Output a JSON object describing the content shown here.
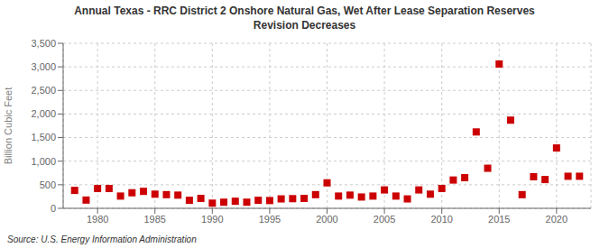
{
  "chart_data": {
    "type": "scatter",
    "title": "Annual Texas - RRC District 2 Onshore Natural Gas, Wet After Lease Separation Reserves\nRevision Decreases",
    "ylabel": "Billion Cubic Feet",
    "annotations": [
      "Source: U.S. Energy Information Administration"
    ],
    "x": [
      1978,
      1979,
      1980,
      1981,
      1982,
      1983,
      1984,
      1985,
      1986,
      1987,
      1988,
      1989,
      1990,
      1991,
      1992,
      1993,
      1994,
      1995,
      1996,
      1997,
      1998,
      1999,
      2000,
      2001,
      2002,
      2003,
      2004,
      2005,
      2006,
      2007,
      2008,
      2009,
      2010,
      2011,
      2012,
      2013,
      2014,
      2015,
      2016,
      2017,
      2018,
      2019,
      2020,
      2021,
      2022
    ],
    "values": [
      380,
      175,
      420,
      420,
      260,
      330,
      360,
      300,
      290,
      280,
      170,
      210,
      110,
      130,
      150,
      130,
      170,
      165,
      200,
      205,
      210,
      290,
      540,
      260,
      280,
      240,
      260,
      390,
      260,
      200,
      390,
      300,
      420,
      600,
      650,
      1620,
      850,
      3060,
      1870,
      290,
      670,
      610,
      1280,
      680,
      680
    ],
    "color": "#cc0000",
    "marker": "square",
    "xlim": [
      1977,
      2023
    ],
    "ylim": [
      0,
      3500
    ],
    "xticks": [
      1980,
      1985,
      1990,
      1995,
      2000,
      2005,
      2010,
      2015,
      2020
    ],
    "yticks": [
      0,
      500,
      {
        "value": 1000,
        "label": "1,000"
      },
      {
        "value": 1500,
        "label": "1,500"
      },
      {
        "value": 2000,
        "label": "2,000"
      },
      {
        "value": 2500,
        "label": "2,500"
      },
      {
        "value": 3000,
        "label": "3,000"
      },
      {
        "value": 3500,
        "label": "3,500"
      }
    ],
    "grid": true
  }
}
